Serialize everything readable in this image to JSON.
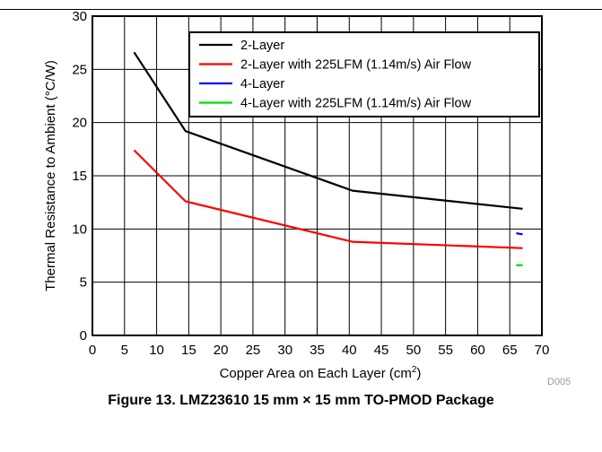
{
  "chart_data": {
    "type": "line",
    "title": "",
    "xlabel": "Copper Area on Each Layer (cm",
    "xlabel_sup": "2",
    "xlabel_tail": ")",
    "ylabel": "Thermal Resistance to Ambient (°C/W)",
    "xlim": [
      0,
      70
    ],
    "ylim": [
      0,
      30
    ],
    "xticks": [
      0,
      5,
      10,
      15,
      20,
      25,
      30,
      35,
      40,
      45,
      50,
      55,
      60,
      65,
      70
    ],
    "yticks": [
      0,
      5,
      10,
      15,
      20,
      25,
      30
    ],
    "grid": true,
    "legend_position": "top-right",
    "series": [
      {
        "name": "2-Layer",
        "color": "#000000",
        "x": [
          6.5,
          14.5,
          40.5,
          67
        ],
        "y": [
          26.6,
          19.2,
          13.6,
          11.9
        ]
      },
      {
        "name": "2-Layer with 225LFM (1.14m/s) Air Flow",
        "color": "#ff0000",
        "x": [
          6.5,
          14.5,
          40.5,
          67
        ],
        "y": [
          17.4,
          12.6,
          8.8,
          8.2
        ]
      },
      {
        "name": "4-Layer",
        "color": "#0000ff",
        "x": [
          66,
          67
        ],
        "y": [
          9.6,
          9.5
        ]
      },
      {
        "name": "4-Layer with 225LFM (1.14m/s) Air Flow",
        "color": "#00dd00",
        "x": [
          66,
          67
        ],
        "y": [
          6.6,
          6.6
        ]
      }
    ],
    "figure_code": "D005"
  },
  "caption": "Figure 13. LMZ23610 15 mm × 15 mm TO-PMOD Package"
}
